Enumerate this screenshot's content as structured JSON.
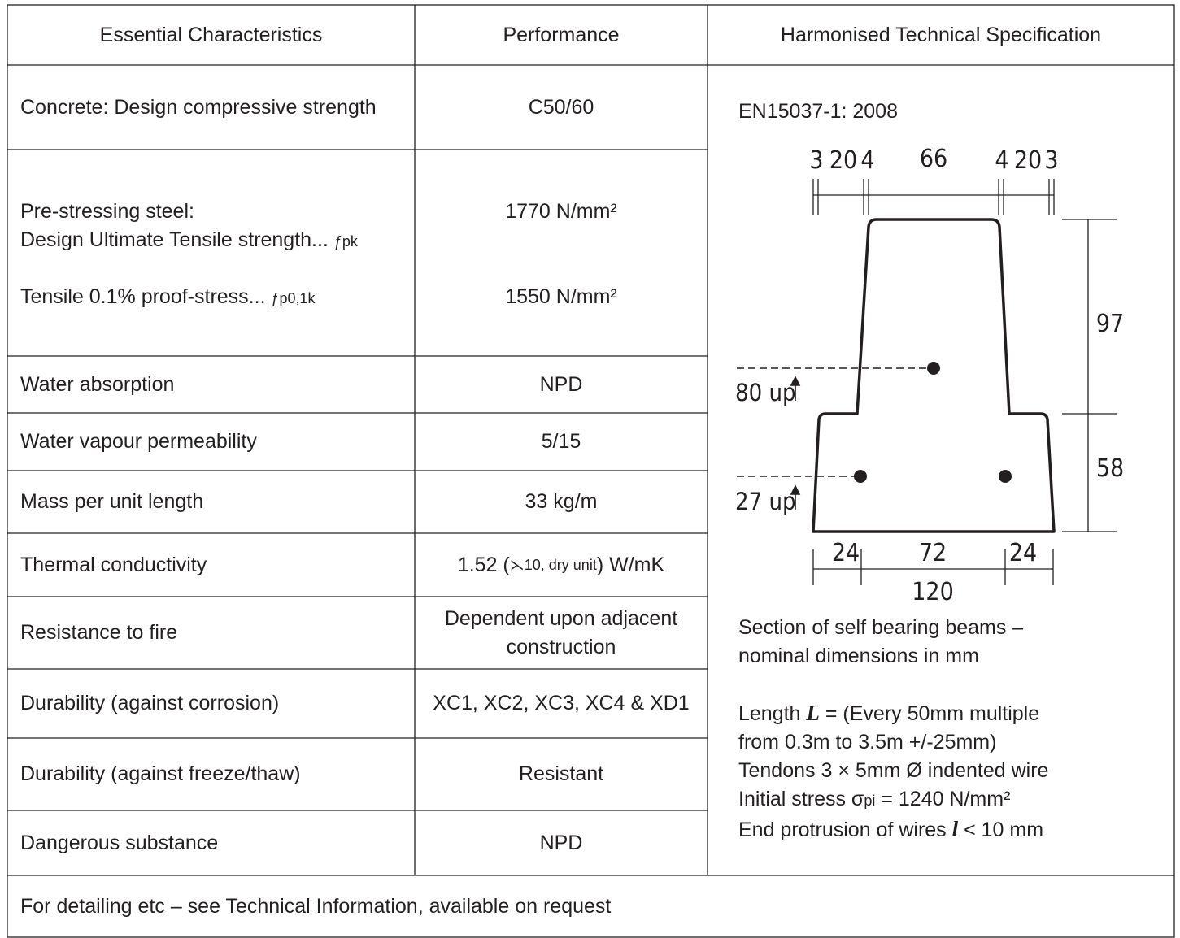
{
  "headers": {
    "essential": "Essential Characteristics",
    "performance": "Performance",
    "spec": "Harmonised Technical Specification"
  },
  "rows": [
    {
      "characteristic": "Concrete: Design compressive strength",
      "performance": "C50/60"
    },
    {
      "characteristic_line1": "Pre-stressing steel:",
      "characteristic_line2": "Design Ultimate Tensile strength...",
      "characteristic_line2_sub": "ƒpk",
      "performance": "1770 N/mm²",
      "characteristic_line3": "Tensile 0.1% proof-stress...",
      "characteristic_line3_sub": "ƒp0,1k",
      "performance2": "1550 N/mm²"
    },
    {
      "characteristic": "Water absorption",
      "performance": "NPD"
    },
    {
      "characteristic": "Water vapour permeability",
      "performance": "5/15"
    },
    {
      "characteristic": "Mass per unit length",
      "performance": "33 kg/m"
    },
    {
      "characteristic": "Thermal conductivity",
      "performance_main": "1.52 (",
      "performance_symbol": "⋋",
      "performance_sub": " 10, dry unit",
      "performance_tail": ") W/mK"
    },
    {
      "characteristic": "Resistance to fire",
      "performance": "Dependent upon adjacent construction"
    },
    {
      "characteristic": "Durability (against corrosion)",
      "performance": "XC1, XC2, XC3, XC4 & XD1"
    },
    {
      "characteristic": "Durability (against freeze/thaw)",
      "performance": "Resistant"
    },
    {
      "characteristic": "Dangerous substance",
      "performance": "NPD"
    }
  ],
  "spec": {
    "standard": "EN15037-1: 2008",
    "caption_line1": "Section of self bearing beams –",
    "caption_line2": "nominal dimensions in mm",
    "length_prefix": "Length ",
    "length_symbol": "L",
    "length_rest": " = (Every 50mm multiple",
    "length_line2": "from 0.3m to 3.5m +/-25mm)",
    "tendons": "Tendons 3 × 5mm Ø indented wire",
    "stress_prefix": "Initial stress σ",
    "stress_sub": "pi",
    "stress_rest": " = 1240 N/mm²",
    "protrusion_prefix": "End protrusion of wires ",
    "protrusion_symbol": "l",
    "protrusion_rest": " < 10 mm"
  },
  "diagram": {
    "top_dims": [
      "3",
      "20",
      "4",
      "66",
      "4",
      "20",
      "3"
    ],
    "height_top": "97",
    "height_bottom": "58",
    "upper_tendon": "80 up",
    "lower_tendons": "27 up",
    "bottom_dims": [
      "24",
      "72",
      "24"
    ],
    "total_width": "120"
  },
  "footer": "For detailing etc – see Technical Information, available on request"
}
